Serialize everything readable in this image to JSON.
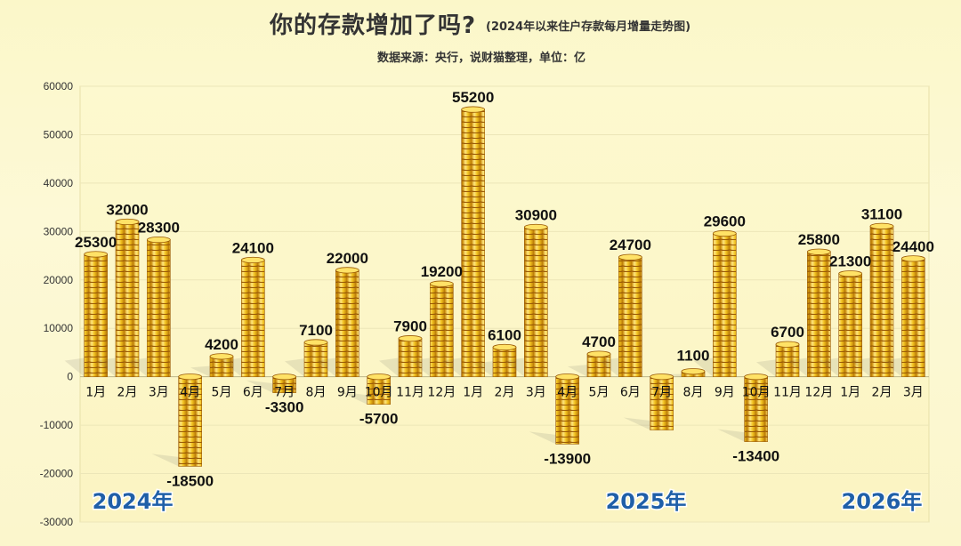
{
  "header": {
    "title": "你的存款增加了吗?",
    "subtitle": "(2024年以来住户存款每月增量走势图)",
    "source": "数据来源：央行，说财猫整理，单位：亿"
  },
  "chart_data": {
    "type": "bar",
    "title": "你的存款增加了吗?",
    "subtitle": "(2024年以来住户存款每月增量走势图)",
    "unit": "亿",
    "ylim": [
      -30000,
      60000
    ],
    "yticks": [
      -30000,
      -20000,
      -10000,
      0,
      10000,
      20000,
      30000,
      40000,
      50000,
      60000
    ],
    "grid": true,
    "categories": [
      "1月",
      "2月",
      "3月",
      "4月",
      "5月",
      "6月",
      "7月",
      "8月",
      "9月",
      "10月",
      "11月",
      "12月",
      "1月",
      "2月",
      "3月",
      "4月",
      "5月",
      "6月",
      "7月",
      "8月",
      "9月",
      "10月",
      "11月",
      "12月",
      "1月",
      "2月",
      "3月"
    ],
    "values": [
      25300,
      32000,
      28300,
      -18500,
      4200,
      24100,
      -3300,
      7100,
      22000,
      -5700,
      7900,
      19200,
      55200,
      6100,
      30900,
      -13900,
      4700,
      24700,
      -11000,
      1100,
      29600,
      -13400,
      6700,
      25800,
      21300,
      31100,
      24400
    ],
    "data_labels": [
      "25300",
      "32000",
      "28300",
      "-18500",
      "4200",
      "24100",
      "-3300",
      "7100",
      "22000",
      "-5700",
      "7900",
      "19200",
      "55200",
      "6100",
      "30900",
      "-13900",
      "4700",
      "24700",
      "",
      "1100",
      "29600",
      "-13400",
      "6700",
      "25800",
      "21300",
      "31100",
      "24400"
    ],
    "year_groups": [
      {
        "label": "2024年",
        "start": 0,
        "end": 11
      },
      {
        "label": "2025年",
        "start": 12,
        "end": 23
      },
      {
        "label": "2026年",
        "start": 24,
        "end": 26
      }
    ],
    "colors": {
      "coin": "#f2c21f",
      "coin_dark": "#9a5a06",
      "coin_light": "#ffe680",
      "year": "#1f5fa8"
    }
  }
}
